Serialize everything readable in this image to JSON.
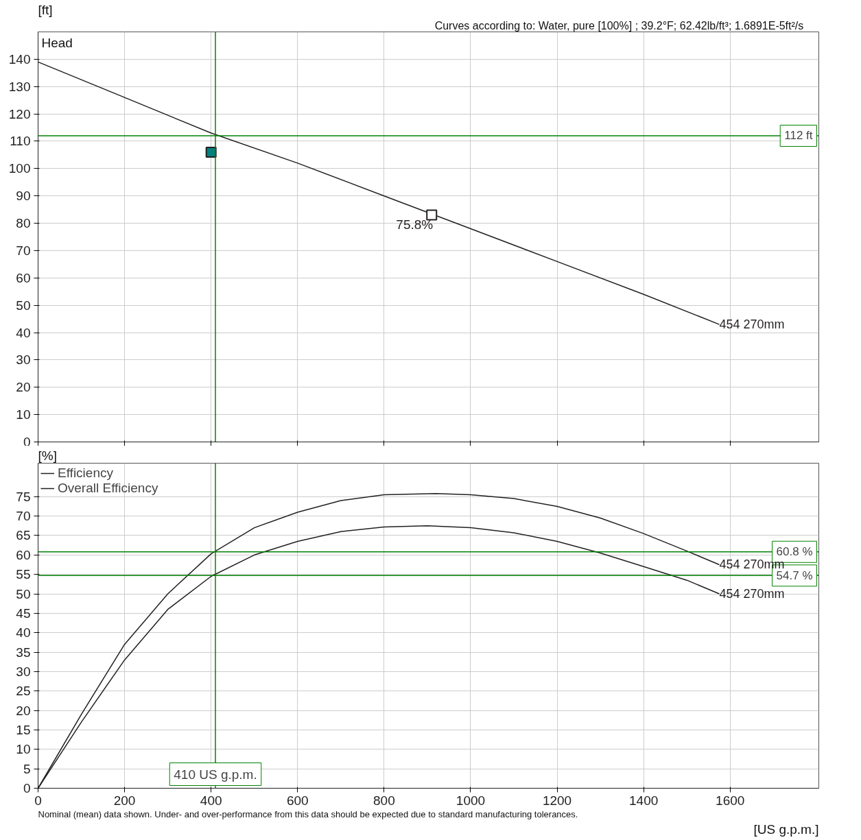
{
  "chart_data": [
    {
      "type": "line",
      "title": "Head",
      "ylabel": "[ft]",
      "xlim": [
        0,
        1805
      ],
      "ylim": [
        0,
        150
      ],
      "xticks": [
        0,
        200,
        400,
        600,
        800,
        1000,
        1200,
        1400,
        1600
      ],
      "yticks": [
        0,
        10,
        20,
        30,
        40,
        50,
        60,
        70,
        80,
        90,
        100,
        110,
        120,
        130,
        140
      ],
      "tick_labels": "y",
      "grid": true,
      "annotations": [
        "Curves according to:      Water, pure [100%] ; 39.2°F; 62.42lb/ft³; 1.6891E-5ft²/s"
      ],
      "ref_lines": [
        {
          "axis": "x",
          "value": 410,
          "color": "#008000"
        },
        {
          "axis": "y",
          "value": 112,
          "label": "112 ft",
          "color": "#008000"
        }
      ],
      "series": [
        {
          "name": "454 270mm",
          "color": "#231f20",
          "x": [
            0,
            200,
            400,
            600,
            800,
            1000,
            1200,
            1400,
            1575
          ],
          "values": [
            139,
            126,
            113,
            102,
            90,
            78,
            66,
            54,
            43
          ]
        },
        {
          "type": "scatter",
          "marker": "square",
          "color": "#008080",
          "x": [
            400
          ],
          "values": [
            106
          ]
        },
        {
          "name": "75.8%",
          "type": "scatter",
          "marker": "square",
          "color": "#ffffff",
          "x": [
            910
          ],
          "values": [
            83
          ]
        }
      ]
    },
    {
      "type": "line",
      "ylabel": "[%]",
      "xlabel": "[US g.p.m.]",
      "xlim": [
        0,
        1805
      ],
      "ylim": [
        0,
        83.6
      ],
      "xticks": [
        0,
        200,
        400,
        600,
        800,
        1000,
        1200,
        1400,
        1600
      ],
      "yticks": [
        0,
        5,
        10,
        15,
        20,
        25,
        30,
        35,
        40,
        45,
        50,
        55,
        60,
        65,
        70,
        75
      ],
      "grid": true,
      "legend": "top left",
      "annotations": [
        "Nominal (mean) data shown. Under- and over-performance from this data should be expected due to standard manufacturing tolerances.",
        {
          "text": "454 270mm",
          "x": 1575,
          "y": 57.5
        },
        {
          "text": "454 270mm",
          "x": 1575,
          "y": 50
        }
      ],
      "ref_lines": [
        {
          "axis": "x",
          "value": 410,
          "label": "410 US g.p.m.",
          "color": "#008000"
        },
        {
          "axis": "y",
          "value": 60.8,
          "label": "60.8 %",
          "color": "#008000"
        },
        {
          "axis": "y",
          "value": 54.7,
          "label": "54.7 %",
          "color": "#008000"
        }
      ],
      "series": [
        {
          "name": "Efficiency",
          "color": "#231f20",
          "x": [
            0,
            100,
            200,
            300,
            400,
            500,
            600,
            700,
            800,
            920,
            1000,
            1100,
            1200,
            1300,
            1400,
            1500,
            1575
          ],
          "values": [
            0,
            19,
            37,
            50,
            60.3,
            67,
            71,
            74,
            75.5,
            75.8,
            75.5,
            74.5,
            72.5,
            69.5,
            65.5,
            61,
            57.5
          ]
        },
        {
          "name": "Overall Efficiency",
          "color": "#231f20",
          "x": [
            0,
            100,
            200,
            300,
            400,
            500,
            600,
            700,
            800,
            900,
            1000,
            1100,
            1200,
            1300,
            1400,
            1500,
            1575
          ],
          "values": [
            0,
            17,
            33,
            46,
            54.5,
            60,
            63.5,
            66,
            67.2,
            67.5,
            67,
            65.7,
            63.5,
            60.5,
            57,
            53.5,
            50
          ]
        }
      ]
    }
  ]
}
